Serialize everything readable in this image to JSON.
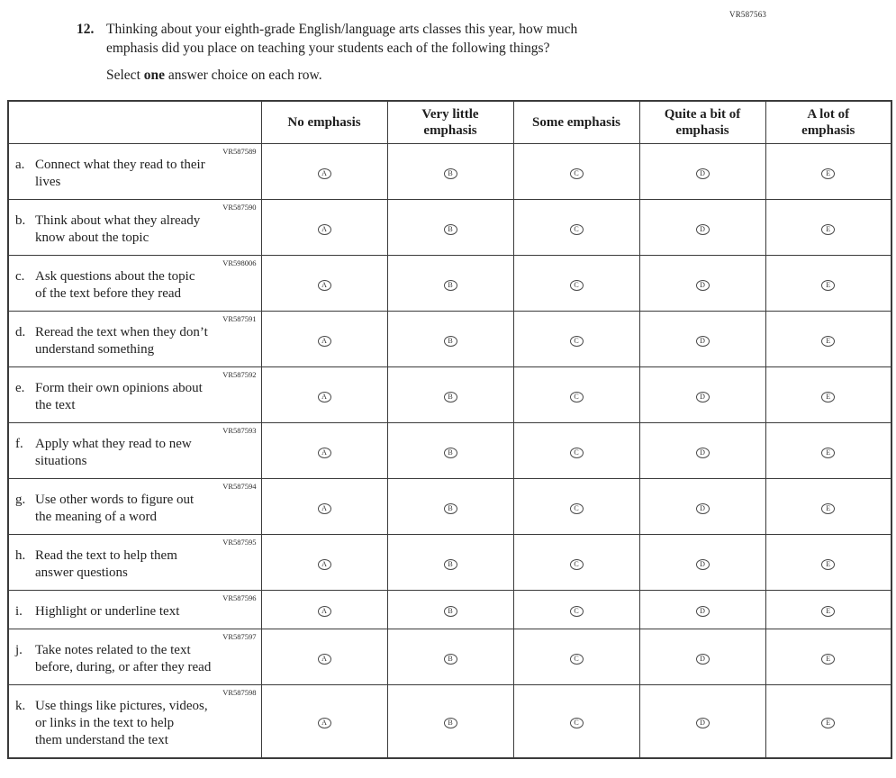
{
  "page": {
    "form_code": "VR587563"
  },
  "question": {
    "number": "12.",
    "text": "Thinking about your eighth-grade English/language arts classes this year, how much\nemphasis did you place on teaching your students each of the following things?",
    "instruction_prefix": "Select ",
    "instruction_bold": "one",
    "instruction_suffix": " answer choice on each row."
  },
  "table": {
    "columns": [
      "No emphasis",
      "Very little\nemphasis",
      "Some emphasis",
      "Quite a bit of\nemphasis",
      "A lot of\nemphasis"
    ],
    "bubble_letters": [
      "A",
      "B",
      "C",
      "D",
      "E"
    ],
    "rows": [
      {
        "code": "VR587589",
        "letter": "a.",
        "text": "Connect what they read to their\nlives"
      },
      {
        "code": "VR587590",
        "letter": "b.",
        "text": "Think about what they already\nknow about the topic"
      },
      {
        "code": "VR598006",
        "letter": "c.",
        "text": "Ask questions about the topic\nof the text before they read"
      },
      {
        "code": "VR587591",
        "letter": "d.",
        "text": "Reread the text when they don’t\nunderstand something"
      },
      {
        "code": "VR587592",
        "letter": "e.",
        "text": "Form their own opinions about\nthe text"
      },
      {
        "code": "VR587593",
        "letter": "f.",
        "text": "Apply what they read to new\nsituations"
      },
      {
        "code": "VR587594",
        "letter": "g.",
        "text": "Use other words to figure out\nthe meaning of a word"
      },
      {
        "code": "VR587595",
        "letter": "h.",
        "text": "Read the text to help them\nanswer questions"
      },
      {
        "code": "VR587596",
        "letter": "i.",
        "text": "Highlight or underline text"
      },
      {
        "code": "VR587597",
        "letter": "j.",
        "text": "Take notes related to the text\nbefore, during, or after they read"
      },
      {
        "code": "VR587598",
        "letter": "k.",
        "text": "Use things like pictures, videos,\nor links in the text to help\nthem understand the text"
      }
    ]
  }
}
